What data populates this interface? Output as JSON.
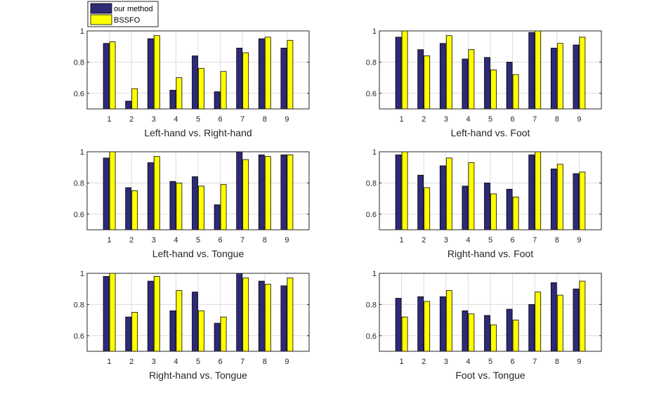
{
  "colors": {
    "our_method": "#2e2a78",
    "bssfo": "#ffff00",
    "axis": "#262626",
    "grid": "#dcdcdc"
  },
  "legend": {
    "position": "top-left",
    "entries": [
      "our method",
      "BSSFO"
    ]
  },
  "chart_data": [
    {
      "type": "bar",
      "xlabel": "Left-hand vs. Right-hand",
      "categories": [
        "1",
        "2",
        "3",
        "4",
        "5",
        "6",
        "7",
        "8",
        "9"
      ],
      "ylim": [
        0.5,
        1
      ],
      "yticks": [
        "0.6",
        "0.8",
        "1"
      ],
      "grid": true,
      "series": [
        {
          "name": "our method",
          "values": [
            0.92,
            0.55,
            0.95,
            0.62,
            0.84,
            0.61,
            0.89,
            0.95,
            0.89
          ]
        },
        {
          "name": "BSSFO",
          "values": [
            0.93,
            0.63,
            0.97,
            0.7,
            0.76,
            0.74,
            0.86,
            0.96,
            0.94
          ]
        }
      ]
    },
    {
      "type": "bar",
      "xlabel": "Left-hand vs. Foot",
      "categories": [
        "1",
        "2",
        "3",
        "4",
        "5",
        "6",
        "7",
        "8",
        "9"
      ],
      "ylim": [
        0.5,
        1
      ],
      "yticks": [
        "0.6",
        "0.8",
        "1"
      ],
      "grid": true,
      "series": [
        {
          "name": "our method",
          "values": [
            0.96,
            0.88,
            0.92,
            0.82,
            0.83,
            0.8,
            0.99,
            0.89,
            0.91
          ]
        },
        {
          "name": "BSSFO",
          "values": [
            1.0,
            0.84,
            0.97,
            0.88,
            0.75,
            0.72,
            1.0,
            0.92,
            0.96
          ]
        }
      ]
    },
    {
      "type": "bar",
      "xlabel": "Left-hand vs. Tongue",
      "categories": [
        "1",
        "2",
        "3",
        "4",
        "5",
        "6",
        "7",
        "8",
        "9"
      ],
      "ylim": [
        0.5,
        1
      ],
      "yticks": [
        "0.6",
        "0.8",
        "1"
      ],
      "grid": true,
      "series": [
        {
          "name": "our method",
          "values": [
            0.96,
            0.77,
            0.93,
            0.81,
            0.84,
            0.66,
            1.0,
            0.98,
            0.98
          ]
        },
        {
          "name": "BSSFO",
          "values": [
            1.0,
            0.75,
            0.97,
            0.8,
            0.78,
            0.79,
            0.95,
            0.97,
            0.98
          ]
        }
      ]
    },
    {
      "type": "bar",
      "xlabel": "Right-hand vs. Foot",
      "categories": [
        "1",
        "2",
        "3",
        "4",
        "5",
        "6",
        "7",
        "8",
        "9"
      ],
      "ylim": [
        0.5,
        1
      ],
      "yticks": [
        "0.6",
        "0.8",
        "1"
      ],
      "grid": true,
      "series": [
        {
          "name": "our method",
          "values": [
            0.98,
            0.85,
            0.91,
            0.78,
            0.8,
            0.76,
            0.98,
            0.89,
            0.86
          ]
        },
        {
          "name": "BSSFO",
          "values": [
            1.0,
            0.77,
            0.96,
            0.93,
            0.73,
            0.71,
            1.0,
            0.92,
            0.87
          ]
        }
      ]
    },
    {
      "type": "bar",
      "xlabel": "Right-hand vs. Tongue",
      "categories": [
        "1",
        "2",
        "3",
        "4",
        "5",
        "6",
        "7",
        "8",
        "9"
      ],
      "ylim": [
        0.5,
        1
      ],
      "yticks": [
        "0.6",
        "0.8",
        "1"
      ],
      "grid": true,
      "series": [
        {
          "name": "our method",
          "values": [
            0.98,
            0.72,
            0.95,
            0.76,
            0.88,
            0.68,
            1.0,
            0.95,
            0.92
          ]
        },
        {
          "name": "BSSFO",
          "values": [
            1.0,
            0.75,
            0.98,
            0.89,
            0.76,
            0.72,
            0.97,
            0.93,
            0.97
          ]
        }
      ]
    },
    {
      "type": "bar",
      "xlabel": "Foot vs. Tongue",
      "categories": [
        "1",
        "2",
        "3",
        "4",
        "5",
        "6",
        "7",
        "8",
        "9"
      ],
      "ylim": [
        0.5,
        1
      ],
      "yticks": [
        "0.6",
        "0.8",
        "1"
      ],
      "grid": true,
      "series": [
        {
          "name": "our method",
          "values": [
            0.84,
            0.85,
            0.85,
            0.76,
            0.73,
            0.77,
            0.8,
            0.94,
            0.9
          ]
        },
        {
          "name": "BSSFO",
          "values": [
            0.72,
            0.82,
            0.89,
            0.74,
            0.67,
            0.7,
            0.88,
            0.86,
            0.95
          ]
        }
      ]
    }
  ]
}
